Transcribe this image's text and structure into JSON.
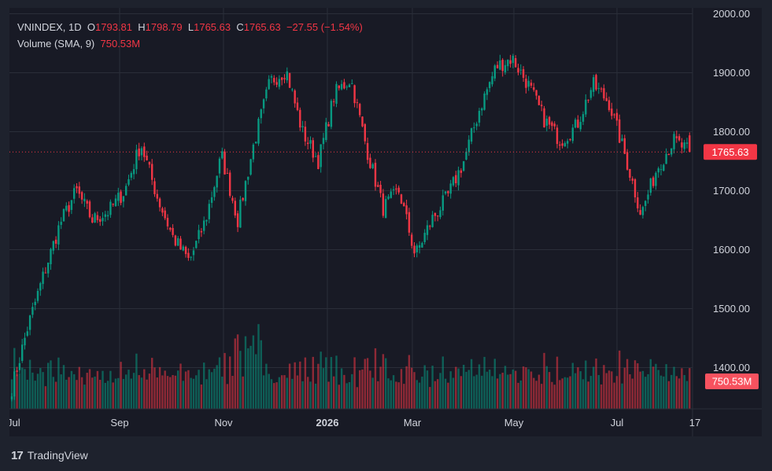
{
  "legend": {
    "symbol": "VNINDEX",
    "interval": "1D",
    "o_label": "O",
    "o_value": "1793.81",
    "h_label": "H",
    "h_value": "1798.79",
    "l_label": "L",
    "l_value": "1765.63",
    "c_label": "C",
    "c_value": "1765.63",
    "change": "−27.55 (−1.54%)",
    "volume_label": "Volume (SMA, 9)",
    "volume_value": "750.53M"
  },
  "price_badge": "1765.63",
  "volume_badge": "750.53M",
  "footer": {
    "logo": "17",
    "brand": "TradingView"
  },
  "colors": {
    "up": "#089981",
    "down": "#f23645",
    "grid": "#2a2e39",
    "text": "#d1d4dc",
    "background": "#181a25"
  },
  "chart_data": {
    "type": "candlestick",
    "y_axis": {
      "range": [
        1330,
        2010
      ],
      "ticks": [
        1400,
        1500,
        1600,
        1700,
        1800,
        1900,
        2000
      ],
      "tick_labels": [
        "1400.00",
        "1500.00",
        "1600.00",
        "1700.00",
        "1800.00",
        "1900.00",
        "2000.00"
      ],
      "side": "right"
    },
    "x_axis": {
      "tick_labels": [
        "Jul",
        "Sep",
        "Nov",
        "2026",
        "Mar",
        "May",
        "Jul",
        "17"
      ]
    },
    "last_close": 1765.63,
    "grid": true,
    "series": [
      {
        "name": "VNINDEX",
        "anchors": [
          [
            "Jul",
            1365
          ],
          [
            "mid-Jul",
            1470
          ],
          [
            "Aug",
            1560
          ],
          [
            "mid-Aug",
            1645
          ],
          [
            "Sep",
            1700
          ],
          [
            "mid-Sep",
            1650
          ],
          [
            "late-Sep",
            1665
          ],
          [
            "Oct",
            1700
          ],
          [
            "mid-Oct",
            1780
          ],
          [
            "late-Oct",
            1690
          ],
          [
            "Nov",
            1620
          ],
          [
            "early-Nov",
            1580
          ],
          [
            "mid-Nov",
            1650
          ],
          [
            "Dec",
            1760
          ],
          [
            "mid-Dec",
            1650
          ],
          [
            "late-Dec",
            1780
          ],
          [
            "2026",
            1885
          ],
          [
            "early-Jan",
            1905
          ],
          [
            "mid-Jan",
            1800
          ],
          [
            "late-Jan",
            1750
          ],
          [
            "Feb",
            1865
          ],
          [
            "early-Feb",
            1890
          ],
          [
            "mid-Feb",
            1770
          ],
          [
            "late-Feb",
            1670
          ],
          [
            "Mar",
            1700
          ],
          [
            "early-Mar",
            1590
          ],
          [
            "mid-Mar",
            1650
          ],
          [
            "late-Mar",
            1690
          ],
          [
            "Apr",
            1750
          ],
          [
            "mid-Apr",
            1840
          ],
          [
            "late-Apr",
            1910
          ],
          [
            "May",
            1925
          ],
          [
            "early-May",
            1880
          ],
          [
            "mid-May",
            1820
          ],
          [
            "late-May",
            1785
          ],
          [
            "Jun",
            1810
          ],
          [
            "mid-Jun",
            1880
          ],
          [
            "late-Jun",
            1850
          ],
          [
            "Jul",
            1760
          ],
          [
            "early-Jul",
            1660
          ],
          [
            "mid-Jul",
            1740
          ],
          [
            "late-Jul",
            1785
          ],
          [
            "17",
            1765.63
          ]
        ]
      },
      {
        "name": "Volume",
        "ma_period": 9,
        "last_value_millions": 750.53
      }
    ]
  }
}
